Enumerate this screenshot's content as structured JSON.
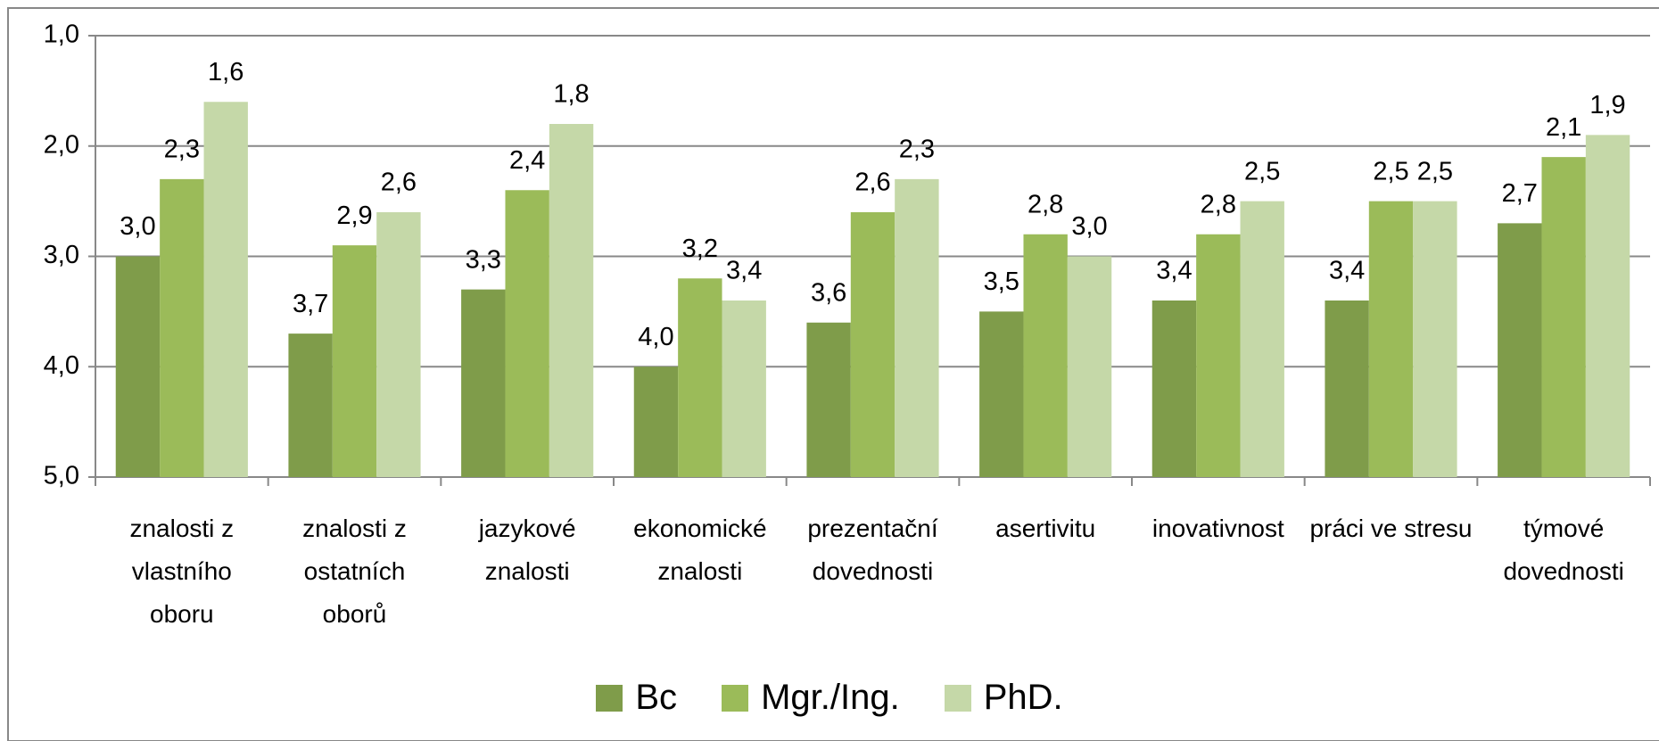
{
  "chart_data": {
    "type": "bar",
    "categories": [
      "znalosti z vlastního oboru",
      "znalosti z ostatních oborů",
      "jazykové znalosti",
      "ekonomické znalosti",
      "prezentační dovednosti",
      "asertivitu",
      "inovativnost",
      "práci ve stresu",
      "týmové dovednosti"
    ],
    "series": [
      {
        "name": "Bc",
        "color": "#7f9c4a",
        "values": [
          3.0,
          3.7,
          3.3,
          4.0,
          3.6,
          3.5,
          3.4,
          3.4,
          2.7
        ],
        "value_labels": [
          "3,0",
          "3,7",
          "3,3",
          "4,0",
          "3,6",
          "3,5",
          "3,4",
          "3,4",
          "2,7"
        ]
      },
      {
        "name": "Mgr./Ing.",
        "color": "#9bbb59",
        "values": [
          2.3,
          2.9,
          2.4,
          3.2,
          2.6,
          2.8,
          2.8,
          2.5,
          2.1
        ],
        "value_labels": [
          "2,3",
          "2,9",
          "2,4",
          "3,2",
          "2,6",
          "2,8",
          "2,8",
          "2,5",
          "2,1"
        ]
      },
      {
        "name": "PhD.",
        "color": "#c5d8a8",
        "values": [
          1.6,
          2.6,
          1.8,
          3.4,
          2.3,
          3.0,
          2.5,
          2.5,
          1.9
        ],
        "value_labels": [
          "1,6",
          "2,6",
          "1,8",
          "3,4",
          "2,3",
          "3,0",
          "2,5",
          "2,5",
          "1,9"
        ]
      }
    ],
    "ylim": [
      5,
      1
    ],
    "yticks": [
      {
        "value": 1,
        "label": "1,0"
      },
      {
        "value": 2,
        "label": "2,0"
      },
      {
        "value": 3,
        "label": "3,0"
      },
      {
        "value": 4,
        "label": "4,0"
      },
      {
        "value": 5,
        "label": "5,0"
      }
    ],
    "grid": true,
    "legend": "bottom"
  }
}
